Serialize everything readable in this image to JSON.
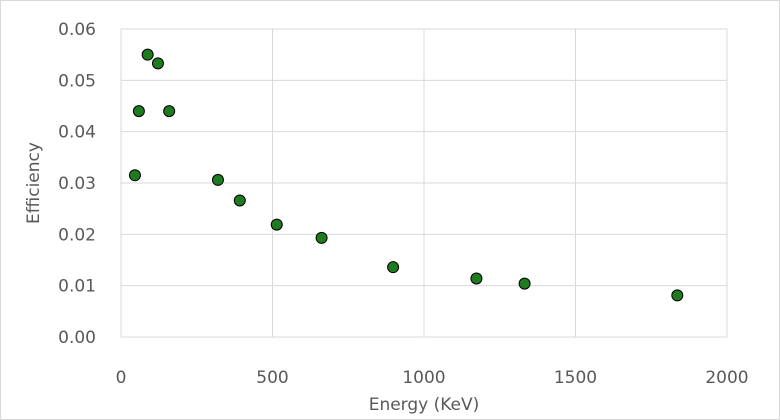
{
  "chart_data": {
    "type": "scatter",
    "xlabel": "Energy (KeV)",
    "ylabel": "Efficiency",
    "xlim": [
      0,
      2000
    ],
    "ylim": [
      0,
      0.06
    ],
    "x_ticks": [
      "0",
      "500",
      "1000",
      "1500",
      "2000"
    ],
    "y_ticks": [
      "0.00",
      "0.01",
      "0.02",
      "0.03",
      "0.04",
      "0.05",
      "0.06"
    ],
    "grid": "vertical and horizontal",
    "marker_color": "#1e7b1e",
    "marker_edge": "#000000",
    "points": [
      {
        "x": 46,
        "y": 0.0315
      },
      {
        "x": 59,
        "y": 0.044
      },
      {
        "x": 88,
        "y": 0.055
      },
      {
        "x": 122,
        "y": 0.0533
      },
      {
        "x": 159,
        "y": 0.044
      },
      {
        "x": 320,
        "y": 0.0306
      },
      {
        "x": 392,
        "y": 0.0266
      },
      {
        "x": 514,
        "y": 0.0219
      },
      {
        "x": 662,
        "y": 0.0193
      },
      {
        "x": 898,
        "y": 0.0136
      },
      {
        "x": 1173,
        "y": 0.0114
      },
      {
        "x": 1332,
        "y": 0.0104
      },
      {
        "x": 1836,
        "y": 0.0081
      }
    ]
  }
}
